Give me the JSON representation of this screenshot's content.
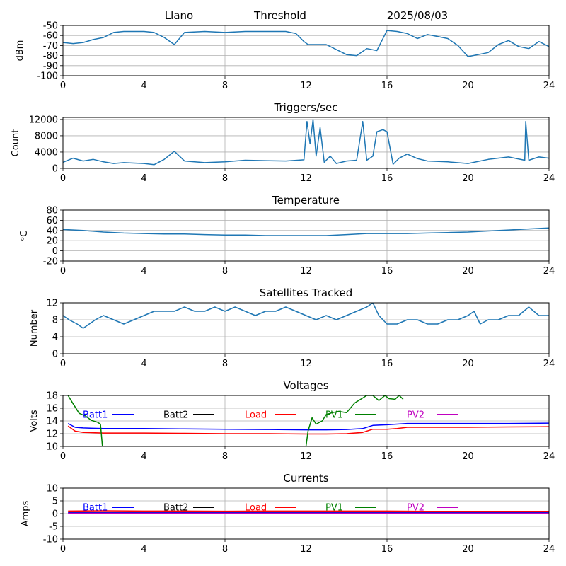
{
  "header": {
    "site": "Llano",
    "mode": "Threshold",
    "date": "2025/08/03"
  },
  "colors": {
    "series": "#1f77b4",
    "grid": "#b0b0b0",
    "Batt1": "#0000ff",
    "Batt2": "#000000",
    "Load": "#ff0000",
    "PV1": "#008000",
    "PV2": "#c000c0"
  },
  "chart_data": [
    {
      "type": "line",
      "title": "",
      "ylabel": "dBm",
      "xlim": [
        0,
        24
      ],
      "ylim": [
        -100,
        -50
      ],
      "x_ticks": [
        0,
        4,
        8,
        12,
        16,
        20,
        24
      ],
      "y_ticks": [
        -100,
        -90,
        -80,
        -70,
        -60,
        -50
      ],
      "grid": true,
      "series": [
        {
          "color": "#1f77b4",
          "x": [
            0,
            0.5,
            1.0,
            1.5,
            2.0,
            2.5,
            3.0,
            3.5,
            4.0,
            4.5,
            5.0,
            5.5,
            6.0,
            7.0,
            8.0,
            9.0,
            10.0,
            11.0,
            11.5,
            11.9,
            12.1,
            12.5,
            13.0,
            13.5,
            14.0,
            14.5,
            15.0,
            15.5,
            16.0,
            16.5,
            17.0,
            17.5,
            18.0,
            18.5,
            19.0,
            19.5,
            20.0,
            20.5,
            21.0,
            21.5,
            22.0,
            22.5,
            23.0,
            23.5,
            24.0
          ],
          "y": [
            -67,
            -68,
            -67,
            -64,
            -62,
            -57,
            -56,
            -56,
            -56,
            -57,
            -62,
            -69,
            -57,
            -56,
            -57,
            -56,
            -56,
            -56,
            -58,
            -66,
            -69,
            -69,
            -69,
            -74,
            -79,
            -80,
            -73,
            -75,
            -55,
            -56,
            -58,
            -63,
            -59,
            -61,
            -63,
            -70,
            -81,
            -79,
            -77,
            -69,
            -65,
            -71,
            -73,
            -66,
            -71
          ]
        }
      ]
    },
    {
      "type": "line",
      "title": "Triggers/sec",
      "ylabel": "Count",
      "xlim": [
        0,
        24
      ],
      "ylim": [
        0,
        12500
      ],
      "x_ticks": [
        0,
        4,
        8,
        12,
        16,
        20,
        24
      ],
      "y_ticks": [
        0,
        4000,
        8000,
        12000
      ],
      "grid": true,
      "series": [
        {
          "color": "#1f77b4",
          "x": [
            0,
            0.5,
            1.0,
            1.5,
            2.0,
            2.5,
            3.0,
            3.5,
            4.0,
            4.5,
            5.0,
            5.5,
            6.0,
            7.0,
            8.0,
            9.0,
            10.0,
            11.0,
            11.9,
            12.05,
            12.2,
            12.35,
            12.5,
            12.7,
            12.9,
            13.2,
            13.5,
            14.0,
            14.5,
            14.8,
            15.0,
            15.3,
            15.5,
            15.8,
            16.0,
            16.3,
            16.6,
            17.0,
            17.5,
            18.0,
            19.0,
            20.0,
            21.0,
            22.0,
            22.8,
            22.85,
            23.0,
            23.5,
            24.0
          ],
          "y": [
            1500,
            2500,
            1800,
            2200,
            1600,
            1200,
            1400,
            1300,
            1200,
            900,
            2200,
            4200,
            1800,
            1400,
            1600,
            2000,
            1900,
            1800,
            2100,
            11500,
            6000,
            12000,
            3000,
            10000,
            1500,
            3000,
            1200,
            1800,
            2000,
            11500,
            2000,
            3000,
            9000,
            9500,
            9000,
            1000,
            2500,
            3500,
            2400,
            1800,
            1600,
            1200,
            2200,
            2800,
            2000,
            11500,
            2000,
            2800,
            2500
          ]
        }
      ]
    },
    {
      "type": "line",
      "title": "Temperature",
      "ylabel": "ᵒC",
      "xlim": [
        0,
        24
      ],
      "ylim": [
        -20,
        80
      ],
      "x_ticks": [
        0,
        4,
        8,
        12,
        16,
        20,
        24
      ],
      "y_ticks": [
        -20,
        0,
        20,
        40,
        60,
        80
      ],
      "grid": true,
      "series": [
        {
          "color": "#1f77b4",
          "x": [
            0,
            1,
            2,
            3,
            4,
            5,
            6,
            7,
            8,
            9,
            10,
            11,
            12,
            13,
            14,
            15,
            16,
            17,
            18,
            19,
            20,
            21,
            22,
            23,
            24
          ],
          "y": [
            42,
            40,
            37,
            35,
            34,
            33,
            33,
            32,
            31,
            31,
            30,
            30,
            30,
            30,
            32,
            34,
            34,
            34,
            35,
            36,
            37,
            39,
            41,
            43,
            45
          ]
        }
      ]
    },
    {
      "type": "line",
      "title": "Satellites Tracked",
      "ylabel": "Number",
      "xlim": [
        0,
        24
      ],
      "ylim": [
        0,
        12
      ],
      "x_ticks": [
        0,
        4,
        8,
        12,
        16,
        20,
        24
      ],
      "y_ticks": [
        0,
        4,
        8,
        12
      ],
      "grid": true,
      "series": [
        {
          "color": "#1f77b4",
          "x": [
            0,
            0.3,
            0.7,
            1.0,
            1.3,
            1.6,
            2.0,
            2.5,
            3.0,
            3.5,
            4.0,
            4.5,
            5.0,
            5.5,
            6.0,
            6.5,
            7.0,
            7.5,
            8.0,
            8.5,
            9.0,
            9.5,
            10.0,
            10.5,
            11.0,
            11.5,
            12.0,
            12.5,
            13.0,
            13.5,
            14.0,
            14.5,
            15.0,
            15.3,
            15.6,
            16.0,
            16.5,
            17.0,
            17.5,
            18.0,
            18.5,
            19.0,
            19.5,
            20.0,
            20.3,
            20.6,
            21.0,
            21.5,
            22.0,
            22.5,
            23.0,
            23.5,
            24.0
          ],
          "y": [
            9,
            8,
            7,
            6,
            7,
            8,
            9,
            8,
            7,
            8,
            9,
            10,
            10,
            10,
            11,
            10,
            10,
            11,
            10,
            11,
            10,
            9,
            10,
            10,
            11,
            10,
            9,
            8,
            9,
            8,
            9,
            10,
            11,
            12,
            9,
            7,
            7,
            8,
            8,
            7,
            7,
            8,
            8,
            9,
            10,
            7,
            8,
            8,
            9,
            9,
            11,
            9,
            9
          ]
        }
      ]
    },
    {
      "type": "line",
      "title": "Voltages",
      "ylabel": "Volts",
      "xlim": [
        0,
        24
      ],
      "ylim": [
        10,
        18
      ],
      "x_ticks": [
        0,
        4,
        8,
        12,
        16,
        20,
        24
      ],
      "y_ticks": [
        10,
        12,
        14,
        16,
        18
      ],
      "grid": true,
      "legend": [
        "Batt1",
        "Batt2",
        "Load",
        "PV1",
        "PV2"
      ],
      "legend_loc": "upper row inside plot",
      "series": [
        {
          "name": "Batt1",
          "color": "#0000ff",
          "x": [
            0.25,
            0.6,
            1,
            2,
            4,
            6,
            8,
            10,
            12,
            13,
            14,
            14.8,
            15.3,
            16,
            16.5,
            17,
            18,
            20,
            22,
            24
          ],
          "y": [
            13.6,
            13.0,
            12.9,
            12.8,
            12.8,
            12.75,
            12.7,
            12.65,
            12.6,
            12.6,
            12.65,
            12.8,
            13.3,
            13.4,
            13.5,
            13.6,
            13.6,
            13.6,
            13.6,
            13.65
          ]
        },
        {
          "name": "Load",
          "color": "#ff0000",
          "x": [
            0.25,
            0.6,
            1,
            2,
            4,
            6,
            8,
            10,
            12,
            13,
            14,
            14.8,
            15.3,
            16,
            16.5,
            17,
            18,
            20,
            22,
            24
          ],
          "y": [
            13.2,
            12.4,
            12.2,
            12.1,
            12.1,
            12.05,
            12.0,
            12.0,
            11.95,
            11.95,
            12.0,
            12.2,
            12.7,
            12.7,
            12.8,
            13.0,
            13.0,
            13.0,
            13.05,
            13.1
          ]
        },
        {
          "name": "PV1",
          "color": "#008000",
          "x": [
            0.25,
            0.5,
            0.8,
            1.1,
            1.4,
            1.7,
            1.85,
            1.95,
            12.0,
            12.1,
            12.3,
            12.5,
            12.8,
            13.0,
            13.3,
            13.6,
            14.0,
            14.4,
            14.7,
            15.0,
            15.3,
            15.6,
            15.9,
            16.1,
            16.4,
            16.6,
            16.8
          ],
          "y": [
            18,
            16.7,
            15.2,
            14.8,
            14.1,
            13.8,
            13.5,
            10,
            10,
            12.4,
            14.5,
            13.5,
            14.0,
            15.0,
            15.3,
            15.5,
            15.3,
            16.8,
            17.4,
            18,
            18,
            17.2,
            18,
            17.5,
            17.4,
            18,
            17.4
          ]
        }
      ]
    },
    {
      "type": "line",
      "title": "Currents",
      "ylabel": "Amps",
      "xlim": [
        0,
        24
      ],
      "ylim": [
        -10,
        10
      ],
      "x_ticks": [
        0,
        4,
        8,
        12,
        16,
        20,
        24
      ],
      "y_ticks": [
        -10,
        -5,
        0,
        5,
        10
      ],
      "grid": true,
      "legend": [
        "Batt1",
        "Batt2",
        "Load",
        "PV1",
        "PV2"
      ],
      "legend_loc": "upper row inside plot",
      "series": [
        {
          "name": "Load",
          "color": "#ff0000",
          "x": [
            0.25,
            2,
            4,
            6,
            8,
            10,
            12,
            14,
            16,
            18,
            20,
            22,
            24
          ],
          "y": [
            1.0,
            1.1,
            1.0,
            1.0,
            0.95,
            1.0,
            1.0,
            1.0,
            1.0,
            0.9,
            0.9,
            0.9,
            0.9
          ]
        },
        {
          "name": "PV1",
          "color": "#008000",
          "x": [
            0.25,
            4,
            8,
            12,
            16,
            20,
            24
          ],
          "y": [
            0.6,
            0.6,
            0.6,
            0.6,
            0.5,
            0.5,
            0.5
          ]
        },
        {
          "name": "Batt1",
          "color": "#0000ff",
          "x": [
            0.25,
            4,
            8,
            12,
            16,
            20,
            24
          ],
          "y": [
            0.3,
            0.3,
            0.3,
            0.3,
            0.3,
            0.3,
            0.3
          ]
        },
        {
          "name": "PV2",
          "color": "#c000c0",
          "x": [
            0.25,
            4,
            8,
            12,
            16,
            20,
            24
          ],
          "y": [
            0.1,
            0.1,
            0.1,
            0.1,
            0.1,
            0.1,
            0.1
          ]
        }
      ]
    }
  ]
}
